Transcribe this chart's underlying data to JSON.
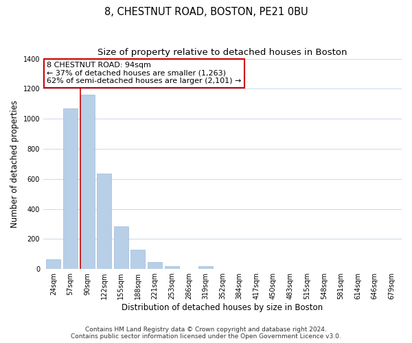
{
  "title": "8, CHESTNUT ROAD, BOSTON, PE21 0BU",
  "subtitle": "Size of property relative to detached houses in Boston",
  "xlabel": "Distribution of detached houses by size in Boston",
  "ylabel": "Number of detached properties",
  "bin_labels": [
    "24sqm",
    "57sqm",
    "90sqm",
    "122sqm",
    "155sqm",
    "188sqm",
    "221sqm",
    "253sqm",
    "286sqm",
    "319sqm",
    "352sqm",
    "384sqm",
    "417sqm",
    "450sqm",
    "483sqm",
    "515sqm",
    "548sqm",
    "581sqm",
    "614sqm",
    "646sqm",
    "679sqm"
  ],
  "bar_values": [
    65,
    1070,
    1160,
    635,
    285,
    130,
    47,
    20,
    0,
    20,
    0,
    0,
    0,
    0,
    0,
    0,
    0,
    0,
    0,
    0,
    0
  ],
  "bar_color": "#b8cfe8",
  "vline_color": "#cc0000",
  "vline_x": 1.575,
  "ylim": [
    0,
    1400
  ],
  "yticks": [
    0,
    200,
    400,
    600,
    800,
    1000,
    1200,
    1400
  ],
  "annotation_line1": "8 CHESTNUT ROAD: 94sqm",
  "annotation_line2": "← 37% of detached houses are smaller (1,263)",
  "annotation_line3": "62% of semi-detached houses are larger (2,101) →",
  "annotation_box_color": "#ffffff",
  "annotation_box_edge": "#cc0000",
  "footer_line1": "Contains HM Land Registry data © Crown copyright and database right 2024.",
  "footer_line2": "Contains public sector information licensed under the Open Government Licence v3.0.",
  "background_color": "#ffffff",
  "grid_color": "#ccd9e8",
  "title_fontsize": 10.5,
  "subtitle_fontsize": 9.5,
  "axis_label_fontsize": 8.5,
  "tick_fontsize": 7,
  "annotation_fontsize": 8,
  "footer_fontsize": 6.5
}
